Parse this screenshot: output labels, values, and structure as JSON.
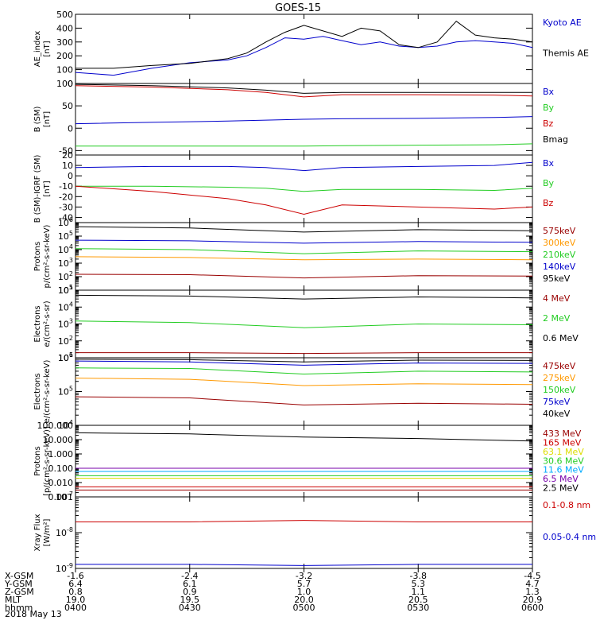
{
  "title": "GOES-15",
  "date": "2018 May 13",
  "colors": {
    "black": "#000000",
    "red": "#cc0000",
    "green": "#22cc22",
    "blue": "#0000cc",
    "orange": "#ff9900",
    "yellow": "#dddd00",
    "cyan": "#00aaff",
    "purple": "#7700aa",
    "darkred": "#990000"
  },
  "time": {
    "start": "0400",
    "end": "0600",
    "ticks": [
      "0400",
      "0430",
      "0500",
      "0530",
      "0600"
    ]
  },
  "ephemeris": {
    "rows": [
      {
        "label": "X-GSM",
        "values": [
          "-1.6",
          "-2.4",
          "-3.2",
          "-3.8",
          "-4.5"
        ]
      },
      {
        "label": "Y-GSM",
        "values": [
          "6.4",
          "6.1",
          "5.7",
          "5.3",
          "4.7"
        ]
      },
      {
        "label": "Z-GSM",
        "values": [
          "0.8",
          "0.9",
          "1.0",
          "1.1",
          "1.3"
        ]
      },
      {
        "label": "MLT",
        "values": [
          "19.0",
          "19.5",
          "20.0",
          "20.5",
          "20.9"
        ]
      },
      {
        "label": "hhmm",
        "values": [
          "0400",
          "0430",
          "0500",
          "0530",
          "0600"
        ]
      }
    ]
  },
  "chart_data": [
    {
      "type": "line",
      "ylabel": "AE_index",
      "yunit": "[nT]",
      "scale": "linear",
      "ylim": [
        0,
        500
      ],
      "yticks": [
        0,
        100,
        200,
        300,
        400,
        500
      ],
      "x": [
        "0400",
        "0410",
        "0420",
        "0430",
        "0440",
        "0445",
        "0450",
        "0455",
        "0500",
        "0505",
        "0510",
        "0515",
        "0520",
        "0525",
        "0530",
        "0535",
        "0540",
        "0545",
        "0550",
        "0555",
        "0600"
      ],
      "series": [
        {
          "name": "Kyoto AE",
          "color": "blue",
          "values": [
            80,
            60,
            110,
            150,
            170,
            200,
            260,
            330,
            320,
            340,
            310,
            280,
            300,
            270,
            260,
            270,
            300,
            310,
            300,
            290,
            260
          ]
        },
        {
          "name": "Themis AE",
          "color": "black",
          "values": [
            110,
            110,
            130,
            145,
            180,
            220,
            300,
            370,
            420,
            380,
            340,
            400,
            380,
            280,
            260,
            300,
            450,
            350,
            330,
            320,
            300
          ]
        }
      ]
    },
    {
      "type": "line",
      "ylabel": "B (SM)",
      "yunit": "[nT]",
      "scale": "linear",
      "ylim": [
        -60,
        100
      ],
      "yticks": [
        -50,
        0,
        50,
        100
      ],
      "x": [
        "0400",
        "0420",
        "0440",
        "0450",
        "0500",
        "0510",
        "0530",
        "0550",
        "0600"
      ],
      "series": [
        {
          "name": "Bx",
          "color": "blue",
          "values": [
            10,
            13,
            16,
            18,
            20,
            21,
            22,
            24,
            26
          ]
        },
        {
          "name": "By",
          "color": "green",
          "values": [
            -40,
            -40,
            -40,
            -40,
            -40,
            -39,
            -38,
            -37,
            -35
          ]
        },
        {
          "name": "Bz",
          "color": "red",
          "values": [
            95,
            92,
            86,
            80,
            70,
            75,
            75,
            74,
            72
          ]
        },
        {
          "name": "Bmag",
          "color": "black",
          "values": [
            98,
            95,
            90,
            85,
            78,
            80,
            80,
            80,
            80
          ]
        }
      ]
    },
    {
      "type": "line",
      "ylabel": "B (SM)-IGRF (SM)",
      "yunit": "[nT]",
      "scale": "linear",
      "ylim": [
        -45,
        20
      ],
      "yticks": [
        -40,
        -30,
        -20,
        -10,
        0,
        10,
        20
      ],
      "x": [
        "0400",
        "0420",
        "0440",
        "0450",
        "0500",
        "0510",
        "0530",
        "0550",
        "0600"
      ],
      "series": [
        {
          "name": "Bx",
          "color": "blue",
          "values": [
            8,
            9,
            9,
            8,
            5,
            8,
            9,
            10,
            13
          ]
        },
        {
          "name": "By",
          "color": "green",
          "values": [
            -10,
            -10,
            -11,
            -12,
            -15,
            -13,
            -13,
            -14,
            -12
          ]
        },
        {
          "name": "Bz",
          "color": "red",
          "values": [
            -10,
            -15,
            -22,
            -28,
            -37,
            -28,
            -30,
            -32,
            -30
          ]
        }
      ]
    },
    {
      "type": "line",
      "ylabel": "Protons",
      "yunit": "p/(cm²-s-sr-keV)",
      "scale": "log",
      "ylim": [
        10,
        1000000
      ],
      "x": [
        "0400",
        "0430",
        "0500",
        "0530",
        "0600"
      ],
      "series": [
        {
          "name": "575keV",
          "color": "darkred",
          "values": [
            150,
            140,
            80,
            120,
            110
          ]
        },
        {
          "name": "300keV",
          "color": "orange",
          "values": [
            3000,
            2600,
            1800,
            2000,
            1800
          ]
        },
        {
          "name": "210keV",
          "color": "green",
          "values": [
            12000,
            10000,
            5000,
            8000,
            7000
          ]
        },
        {
          "name": "140keV",
          "color": "blue",
          "values": [
            50000,
            45000,
            30000,
            40000,
            35000
          ]
        },
        {
          "name": "95keV",
          "color": "black",
          "values": [
            500000,
            400000,
            200000,
            300000,
            250000
          ]
        }
      ]
    },
    {
      "type": "line",
      "ylabel": "Electrons",
      "yunit": "e/(cm²-s-sr)",
      "scale": "log",
      "ylim": [
        10,
        100000
      ],
      "x": [
        "0400",
        "0430",
        "0500",
        "0530",
        "0600"
      ],
      "series": [
        {
          "name": "4 MeV",
          "color": "darkred",
          "values": [
            20,
            20,
            18,
            20,
            20
          ]
        },
        {
          "name": "2 MeV",
          "color": "green",
          "values": [
            1500,
            1200,
            600,
            1000,
            900
          ]
        },
        {
          "name": "0.6 MeV",
          "color": "black",
          "values": [
            50000,
            45000,
            30000,
            40000,
            35000
          ]
        }
      ]
    },
    {
      "type": "line",
      "ylabel": "Electrons",
      "yunit": "e/(cm²-s-sr-keV)",
      "scale": "log",
      "ylim": [
        10000,
        1000000
      ],
      "x": [
        "0400",
        "0430",
        "0500",
        "0530",
        "0600"
      ],
      "series": [
        {
          "name": "475keV",
          "color": "darkred",
          "values": [
            70000,
            65000,
            40000,
            45000,
            42000
          ]
        },
        {
          "name": "275keV",
          "color": "orange",
          "values": [
            250000,
            230000,
            150000,
            170000,
            160000
          ]
        },
        {
          "name": "150keV",
          "color": "green",
          "values": [
            500000,
            480000,
            330000,
            400000,
            380000
          ]
        },
        {
          "name": "75keV",
          "color": "blue",
          "values": [
            800000,
            750000,
            600000,
            700000,
            680000
          ]
        },
        {
          "name": "40keV",
          "color": "black",
          "values": [
            900000,
            880000,
            750000,
            850000,
            830000
          ]
        }
      ]
    },
    {
      "type": "line",
      "ylabel": "Protons",
      "yunit": "[p/(cm²-s-sr-keV)]",
      "scale": "log",
      "ylim": [
        0.001,
        100
      ],
      "yticks": [
        "0.001",
        "0.010",
        "0.100",
        "1.000",
        "10.000",
        "100.000"
      ],
      "x": [
        "0400",
        "0430",
        "0500",
        "0530",
        "0600"
      ],
      "series": [
        {
          "name": "433 MeV",
          "color": "darkred",
          "values": [
            0.003,
            0.003,
            0.003,
            0.003,
            0.003
          ]
        },
        {
          "name": "165 MeV",
          "color": "red",
          "values": [
            0.005,
            0.005,
            0.005,
            0.005,
            0.005
          ]
        },
        {
          "name": "63.1 MeV",
          "color": "yellow",
          "values": [
            0.02,
            0.02,
            0.02,
            0.02,
            0.02
          ]
        },
        {
          "name": "30.6 MeV",
          "color": "green",
          "values": [
            0.03,
            0.03,
            0.03,
            0.03,
            0.03
          ]
        },
        {
          "name": "11.6 MeV",
          "color": "cyan",
          "values": [
            0.06,
            0.06,
            0.06,
            0.06,
            0.06
          ]
        },
        {
          "name": "6.5 MeV",
          "color": "purple",
          "values": [
            0.1,
            0.1,
            0.1,
            0.1,
            0.1
          ]
        },
        {
          "name": "2.5 MeV",
          "color": "black",
          "values": [
            30,
            25,
            15,
            12,
            8
          ]
        }
      ]
    },
    {
      "type": "line",
      "ylabel": "Xray Flux",
      "yunit": "[W/m²]",
      "scale": "log",
      "ylim": [
        1e-09,
        1e-07
      ],
      "x": [
        "0400",
        "0430",
        "0500",
        "0530",
        "0600"
      ],
      "series": [
        {
          "name": "0.1-0.8 nm",
          "color": "red",
          "values": [
            2e-08,
            2e-08,
            2.2e-08,
            2e-08,
            2e-08
          ]
        },
        {
          "name": "0.05-0.4 nm",
          "color": "blue",
          "values": [
            1.3e-09,
            1.3e-09,
            1.2e-09,
            1.3e-09,
            1.3e-09
          ]
        }
      ]
    }
  ]
}
